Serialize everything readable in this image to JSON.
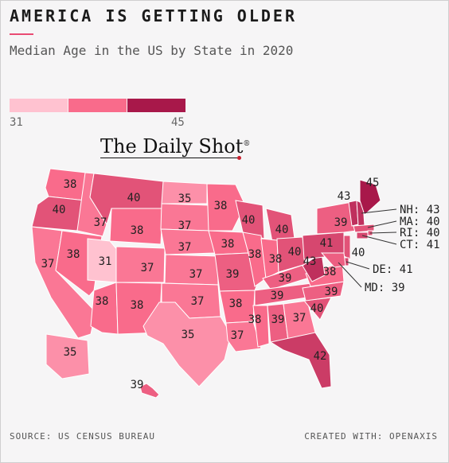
{
  "header": {
    "title": "AMERICA IS GETTING OLDER",
    "subtitle": "Median Age in the US by State in 2020"
  },
  "legend": {
    "min_label": "31",
    "max_label": "45",
    "colors": [
      "#ffc2d0",
      "#f96b8b",
      "#a8184a"
    ]
  },
  "brand": {
    "logo_text": "The Daily Shot",
    "logo_mark": "®"
  },
  "footer": {
    "source": "SOURCE: US CENSUS BUREAU",
    "created": "CREATED WITH: OPENAXIS"
  },
  "chart_data": {
    "type": "choropleth",
    "title": "AMERICA IS GETTING OLDER",
    "subtitle": "Median Age in the US by State in 2020",
    "value_range": [
      31,
      45
    ],
    "color_scale": [
      "#ffc2d0",
      "#f96b8b",
      "#a8184a"
    ],
    "states": [
      {
        "state": "WA",
        "value": 38
      },
      {
        "state": "OR",
        "value": 40
      },
      {
        "state": "CA",
        "value": 37
      },
      {
        "state": "ID",
        "value": 37
      },
      {
        "state": "NV",
        "value": 38
      },
      {
        "state": "MT",
        "value": 40
      },
      {
        "state": "WY",
        "value": 38
      },
      {
        "state": "UT",
        "value": 31
      },
      {
        "state": "AZ",
        "value": 38
      },
      {
        "state": "CO",
        "value": 37
      },
      {
        "state": "NM",
        "value": 38
      },
      {
        "state": "ND",
        "value": 35
      },
      {
        "state": "SD",
        "value": 37
      },
      {
        "state": "NE",
        "value": 37
      },
      {
        "state": "KS",
        "value": 37
      },
      {
        "state": "OK",
        "value": 37
      },
      {
        "state": "TX",
        "value": 35
      },
      {
        "state": "MN",
        "value": 38
      },
      {
        "state": "IA",
        "value": 38
      },
      {
        "state": "MO",
        "value": 39
      },
      {
        "state": "AR",
        "value": 38
      },
      {
        "state": "LA",
        "value": 37
      },
      {
        "state": "WI",
        "value": 40
      },
      {
        "state": "IL",
        "value": 38
      },
      {
        "state": "MI",
        "value": 40
      },
      {
        "state": "IN",
        "value": 38
      },
      {
        "state": "OH",
        "value": 40
      },
      {
        "state": "KY",
        "value": 39
      },
      {
        "state": "TN",
        "value": 39
      },
      {
        "state": "MS",
        "value": 38
      },
      {
        "state": "AL",
        "value": 39
      },
      {
        "state": "GA",
        "value": 37
      },
      {
        "state": "FL",
        "value": 42
      },
      {
        "state": "SC",
        "value": 40
      },
      {
        "state": "NC",
        "value": 39
      },
      {
        "state": "VA",
        "value": 38
      },
      {
        "state": "WV",
        "value": 43
      },
      {
        "state": "PA",
        "value": 41
      },
      {
        "state": "NY",
        "value": 39
      },
      {
        "state": "VT",
        "value": 43
      },
      {
        "state": "NH",
        "value": 43
      },
      {
        "state": "ME",
        "value": 45
      },
      {
        "state": "MA",
        "value": 40
      },
      {
        "state": "RI",
        "value": 40
      },
      {
        "state": "CT",
        "value": 41
      },
      {
        "state": "NJ",
        "value": 40
      },
      {
        "state": "DE",
        "value": 41
      },
      {
        "state": "MD",
        "value": 39
      },
      {
        "state": "AK",
        "value": 35
      },
      {
        "state": "HI",
        "value": 39
      }
    ],
    "callouts": [
      {
        "state": "NH",
        "text": "NH: 43"
      },
      {
        "state": "MA",
        "text": "MA: 40"
      },
      {
        "state": "RI",
        "text": "RI: 40"
      },
      {
        "state": "CT",
        "text": "CT: 41"
      },
      {
        "state": "DE",
        "text": "DE: 41"
      },
      {
        "state": "MD",
        "text": "MD: 39"
      }
    ]
  }
}
